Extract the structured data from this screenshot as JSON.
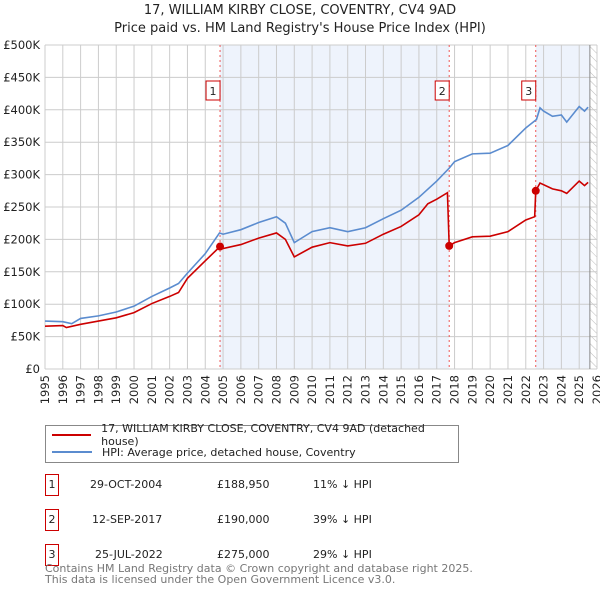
{
  "title": "17, WILLIAM KIRBY CLOSE, COVENTRY, CV4 9AD",
  "subtitle": "Price paid vs. HM Land Registry's House Price Index (HPI)",
  "chart_data": {
    "type": "line",
    "xlim": [
      1995,
      2026
    ],
    "ylim": [
      0,
      500000
    ],
    "x_ticks": [
      "1995",
      "1996",
      "1997",
      "1998",
      "1999",
      "2000",
      "2001",
      "2002",
      "2003",
      "2004",
      "2005",
      "2006",
      "2007",
      "2008",
      "2009",
      "2010",
      "2011",
      "2012",
      "2013",
      "2014",
      "2015",
      "2016",
      "2017",
      "2018",
      "2019",
      "2020",
      "2021",
      "2022",
      "2023",
      "2024",
      "2025",
      "2026"
    ],
    "y_ticks": [
      {
        "v": 0,
        "l": "£0"
      },
      {
        "v": 50000,
        "l": "£50K"
      },
      {
        "v": 100000,
        "l": "£100K"
      },
      {
        "v": 150000,
        "l": "£150K"
      },
      {
        "v": 200000,
        "l": "£200K"
      },
      {
        "v": 250000,
        "l": "£250K"
      },
      {
        "v": 300000,
        "l": "£300K"
      },
      {
        "v": 350000,
        "l": "£350K"
      },
      {
        "v": 400000,
        "l": "£400K"
      },
      {
        "v": 450000,
        "l": "£450K"
      },
      {
        "v": 500000,
        "l": "£500K"
      }
    ],
    "grid": true,
    "shaded_periods": [
      [
        2004.83,
        2017.7
      ],
      [
        2022.56,
        2025.6
      ]
    ],
    "forecast_hatch_from": 2025.6,
    "series": [
      {
        "name": "17, WILLIAM KIRBY CLOSE, COVENTRY, CV4 9AD (detached house)",
        "color": "#cc0000",
        "points": [
          [
            1995,
            66
          ],
          [
            1996,
            67
          ],
          [
            1996.2,
            64
          ],
          [
            1997,
            69
          ],
          [
            1998,
            74
          ],
          [
            1999,
            79
          ],
          [
            2000,
            87
          ],
          [
            2001,
            101
          ],
          [
            2002,
            112
          ],
          [
            2002.5,
            118
          ],
          [
            2003,
            140
          ],
          [
            2004,
            167
          ],
          [
            2004.83,
            188.95
          ],
          [
            2005,
            186
          ],
          [
            2006,
            192
          ],
          [
            2007,
            202
          ],
          [
            2008,
            210
          ],
          [
            2008.5,
            200
          ],
          [
            2009,
            173
          ],
          [
            2010,
            188
          ],
          [
            2011,
            195
          ],
          [
            2012,
            190
          ],
          [
            2013,
            194
          ],
          [
            2014,
            208
          ],
          [
            2015,
            220
          ],
          [
            2016,
            238
          ],
          [
            2016.5,
            255
          ],
          [
            2017,
            262
          ],
          [
            2017.6,
            272
          ],
          [
            2017.7,
            190
          ],
          [
            2018,
            195
          ],
          [
            2019,
            204
          ],
          [
            2020,
            205
          ],
          [
            2021,
            212
          ],
          [
            2022,
            230
          ],
          [
            2022.5,
            235
          ],
          [
            2022.56,
            275
          ],
          [
            2022.8,
            287
          ],
          [
            2023.5,
            278
          ],
          [
            2024,
            275
          ],
          [
            2024.3,
            271
          ],
          [
            2025,
            290
          ],
          [
            2025.3,
            283
          ],
          [
            2025.5,
            288
          ]
        ]
      },
      {
        "name": "HPI: Average price, detached house, Coventry",
        "color": "#5b8ccf",
        "points": [
          [
            1995,
            74
          ],
          [
            1996,
            73
          ],
          [
            1996.5,
            70
          ],
          [
            1997,
            78
          ],
          [
            1998,
            82
          ],
          [
            1999,
            88
          ],
          [
            2000,
            97
          ],
          [
            2001,
            112
          ],
          [
            2002,
            125
          ],
          [
            2002.5,
            132
          ],
          [
            2003,
            148
          ],
          [
            2004,
            178
          ],
          [
            2004.8,
            210
          ],
          [
            2005,
            208
          ],
          [
            2006,
            215
          ],
          [
            2007,
            226
          ],
          [
            2008,
            235
          ],
          [
            2008.5,
            225
          ],
          [
            2009,
            195
          ],
          [
            2010,
            212
          ],
          [
            2011,
            218
          ],
          [
            2012,
            212
          ],
          [
            2013,
            218
          ],
          [
            2014,
            232
          ],
          [
            2015,
            245
          ],
          [
            2016,
            265
          ],
          [
            2017,
            290
          ],
          [
            2017.7,
            310
          ],
          [
            2018,
            320
          ],
          [
            2019,
            332
          ],
          [
            2020,
            333
          ],
          [
            2021,
            345
          ],
          [
            2022,
            372
          ],
          [
            2022.6,
            385
          ],
          [
            2022.8,
            403
          ],
          [
            2023,
            398
          ],
          [
            2023.5,
            390
          ],
          [
            2024,
            392
          ],
          [
            2024.3,
            381
          ],
          [
            2025,
            405
          ],
          [
            2025.3,
            398
          ],
          [
            2025.5,
            404
          ]
        ]
      }
    ],
    "value_units": "£ thousands",
    "sales": [
      {
        "label": "1",
        "x": 2004.83,
        "y": 188.95
      },
      {
        "label": "2",
        "x": 2017.7,
        "y": 190
      },
      {
        "label": "3",
        "x": 2022.56,
        "y": 275
      }
    ]
  },
  "table": [
    {
      "num": "1",
      "date": "29-OCT-2004",
      "price": "£188,950",
      "hpi": "11% ↓ HPI"
    },
    {
      "num": "2",
      "date": "12-SEP-2017",
      "price": "£190,000",
      "hpi": "39% ↓ HPI"
    },
    {
      "num": "3",
      "date": "25-JUL-2022",
      "price": "£275,000",
      "hpi": "29% ↓ HPI"
    }
  ],
  "footer1": "Contains HM Land Registry data © Crown copyright and database right 2025.",
  "footer2": "This data is licensed under the Open Government Licence v3.0."
}
